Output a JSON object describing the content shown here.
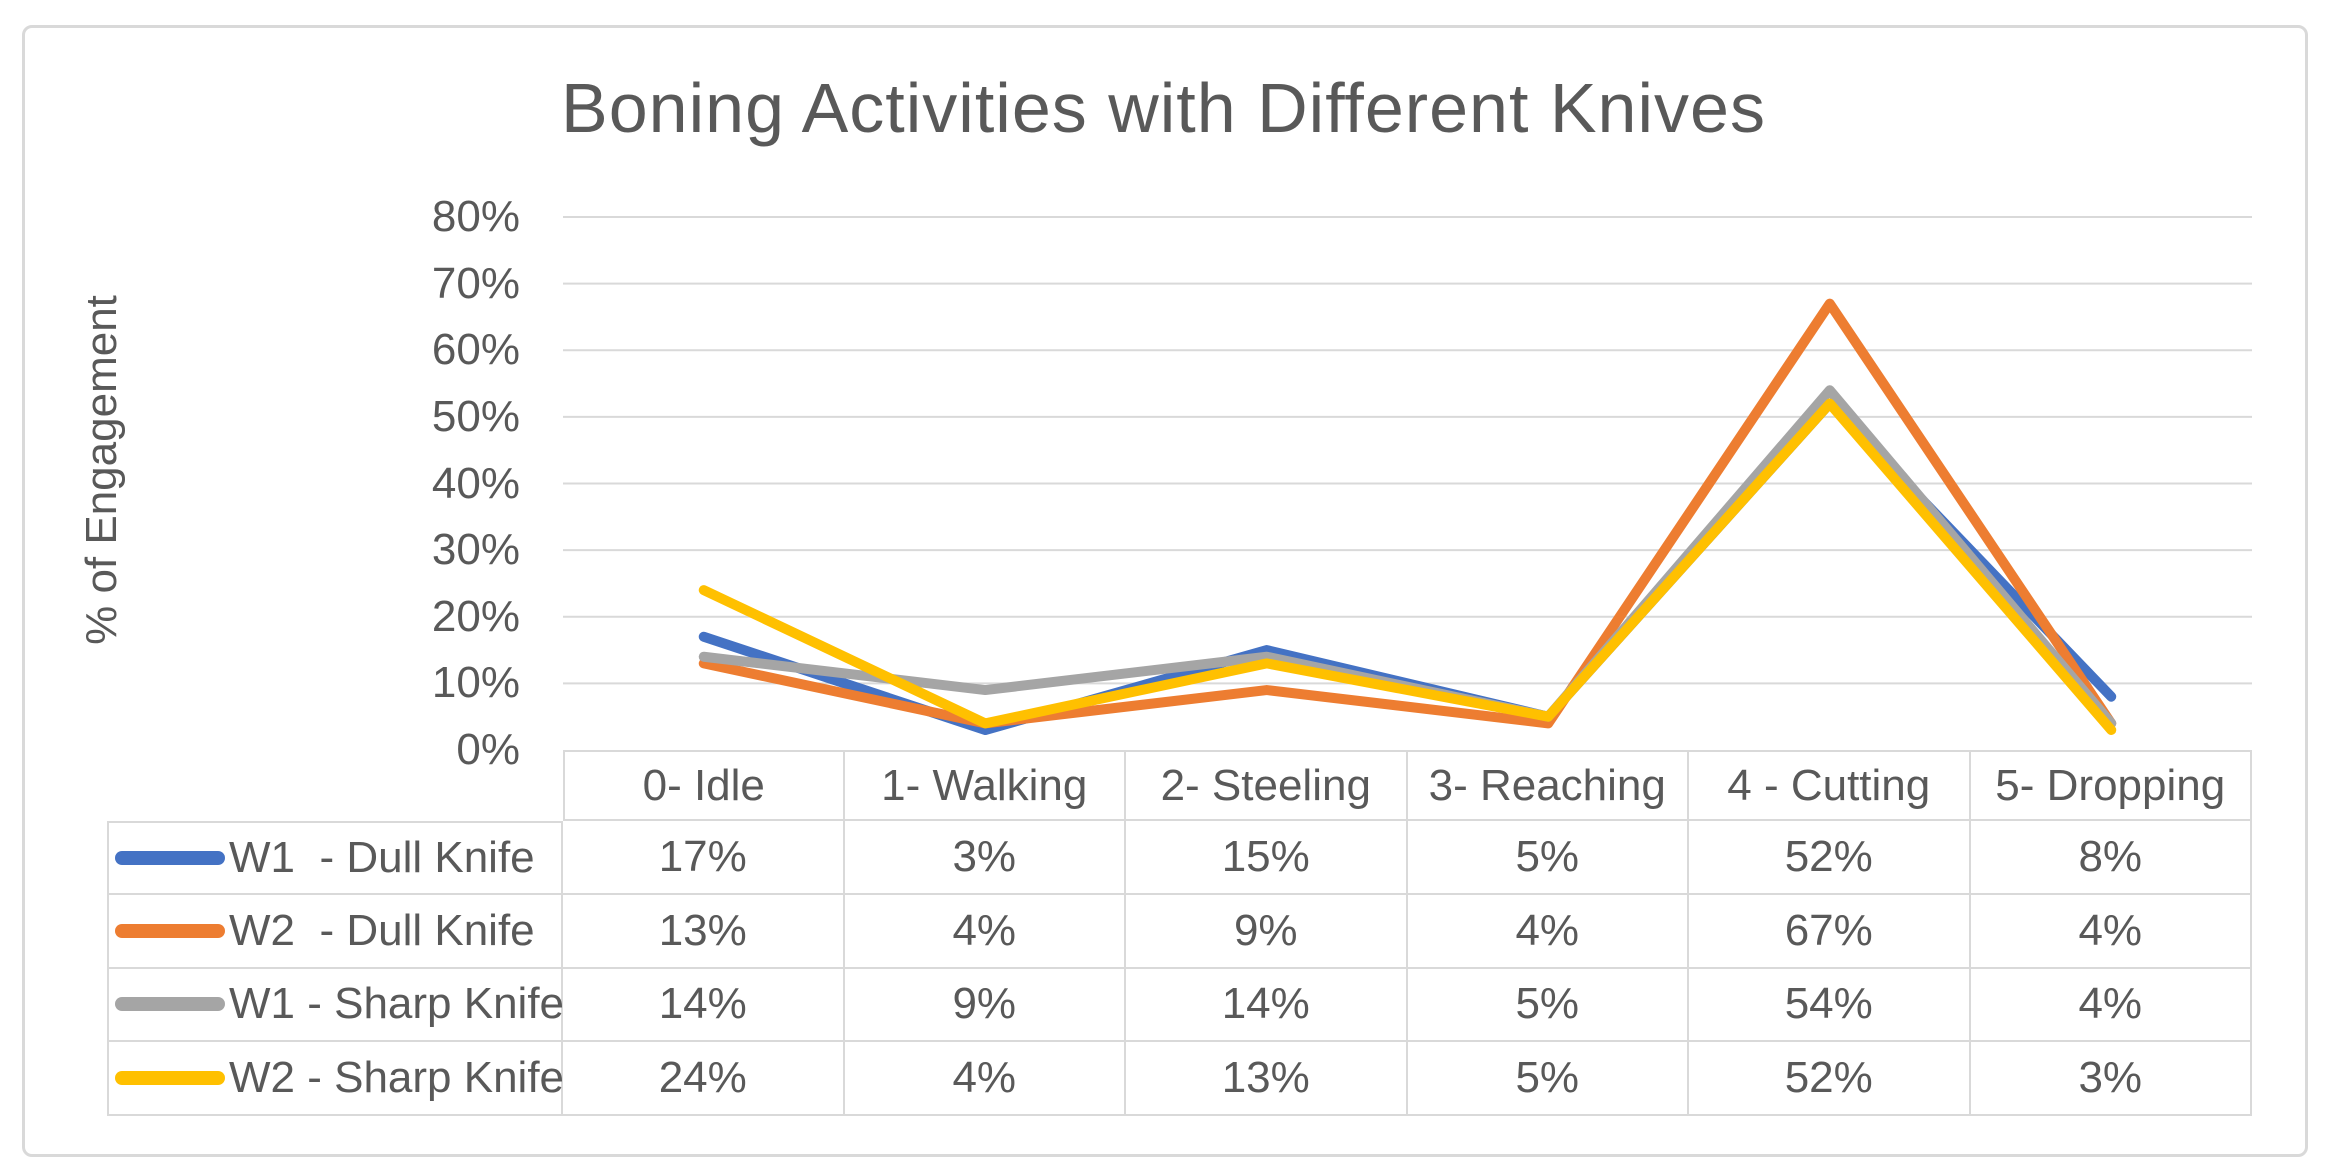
{
  "chart_data": {
    "type": "line",
    "title": "Boning Activities with Different Knives",
    "ylabel": "% of Engagement",
    "categories": [
      "0- Idle",
      "1- Walking",
      "2- Steeling",
      "3- Reaching",
      "4 - Cutting",
      "5- Dropping"
    ],
    "series": [
      {
        "name": "W1  - Dull Knife",
        "color": "#4472C4",
        "values": [
          17,
          3,
          15,
          5,
          52,
          8
        ]
      },
      {
        "name": "W2  - Dull Knife",
        "color": "#ED7D31",
        "values": [
          13,
          4,
          9,
          4,
          67,
          4
        ]
      },
      {
        "name": "W1 - Sharp Knife",
        "color": "#A5A5A5",
        "values": [
          14,
          9,
          14,
          5,
          54,
          4
        ]
      },
      {
        "name": "W2 - Sharp Knife",
        "color": "#FFC000",
        "values": [
          24,
          4,
          13,
          5,
          52,
          3
        ]
      }
    ],
    "ylim": [
      0,
      80
    ],
    "ytick_step": 10,
    "ytick_labels": [
      "0%",
      "10%",
      "20%",
      "30%",
      "40%",
      "50%",
      "60%",
      "70%",
      "80%"
    ],
    "value_suffix": "%",
    "grid": true,
    "legend_position": "data-table-left"
  },
  "colors": {
    "text": "#595959",
    "gridline": "#D9D9D9",
    "table_border": "#D9D9D9",
    "frame_border": "#D9D9D9"
  }
}
